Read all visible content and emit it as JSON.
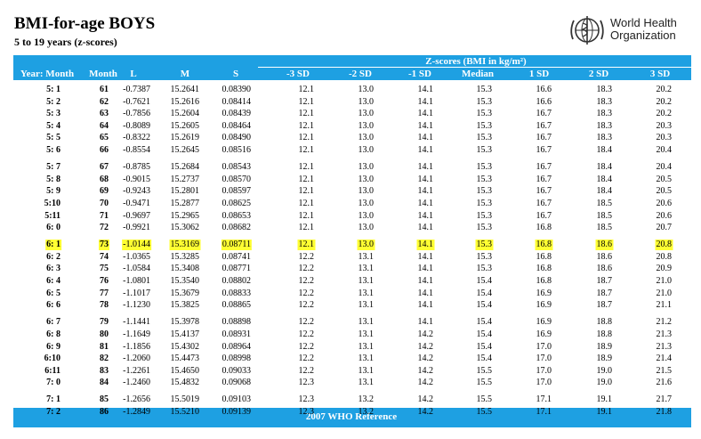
{
  "header": {
    "title": "BMI-for-age BOYS",
    "subtitle": "5 to 19 years (z-scores)",
    "organization": [
      "World Health",
      "Organization"
    ]
  },
  "table": {
    "group_header": "Z-scores (BMI in kg/m²)",
    "columns": [
      "Year: Month",
      "Month",
      "L",
      "M",
      "S",
      "-3 SD",
      "-2 SD",
      "-1 SD",
      "Median",
      "1 SD",
      "2 SD",
      "3 SD"
    ],
    "highlight": {
      "row": 12,
      "color": "#ffff33"
    },
    "rows": [
      [
        "5: 1",
        "61",
        "-0.7387",
        "15.2641",
        "0.08390",
        "12.1",
        "13.0",
        "14.1",
        "15.3",
        "16.6",
        "18.3",
        "20.2"
      ],
      [
        "5: 2",
        "62",
        "-0.7621",
        "15.2616",
        "0.08414",
        "12.1",
        "13.0",
        "14.1",
        "15.3",
        "16.6",
        "18.3",
        "20.2"
      ],
      [
        "5: 3",
        "63",
        "-0.7856",
        "15.2604",
        "0.08439",
        "12.1",
        "13.0",
        "14.1",
        "15.3",
        "16.7",
        "18.3",
        "20.2"
      ],
      [
        "5: 4",
        "64",
        "-0.8089",
        "15.2605",
        "0.08464",
        "12.1",
        "13.0",
        "14.1",
        "15.3",
        "16.7",
        "18.3",
        "20.3"
      ],
      [
        "5: 5",
        "65",
        "-0.8322",
        "15.2619",
        "0.08490",
        "12.1",
        "13.0",
        "14.1",
        "15.3",
        "16.7",
        "18.3",
        "20.3"
      ],
      [
        "5: 6",
        "66",
        "-0.8554",
        "15.2645",
        "0.08516",
        "12.1",
        "13.0",
        "14.1",
        "15.3",
        "16.7",
        "18.4",
        "20.4"
      ],
      [
        "5: 7",
        "67",
        "-0.8785",
        "15.2684",
        "0.08543",
        "12.1",
        "13.0",
        "14.1",
        "15.3",
        "16.7",
        "18.4",
        "20.4"
      ],
      [
        "5: 8",
        "68",
        "-0.9015",
        "15.2737",
        "0.08570",
        "12.1",
        "13.0",
        "14.1",
        "15.3",
        "16.7",
        "18.4",
        "20.5"
      ],
      [
        "5: 9",
        "69",
        "-0.9243",
        "15.2801",
        "0.08597",
        "12.1",
        "13.0",
        "14.1",
        "15.3",
        "16.7",
        "18.4",
        "20.5"
      ],
      [
        "5:10",
        "70",
        "-0.9471",
        "15.2877",
        "0.08625",
        "12.1",
        "13.0",
        "14.1",
        "15.3",
        "16.7",
        "18.5",
        "20.6"
      ],
      [
        "5:11",
        "71",
        "-0.9697",
        "15.2965",
        "0.08653",
        "12.1",
        "13.0",
        "14.1",
        "15.3",
        "16.7",
        "18.5",
        "20.6"
      ],
      [
        "6: 0",
        "72",
        "-0.9921",
        "15.3062",
        "0.08682",
        "12.1",
        "13.0",
        "14.1",
        "15.3",
        "16.8",
        "18.5",
        "20.7"
      ],
      [
        "6: 1",
        "73",
        "-1.0144",
        "15.3169",
        "0.08711",
        "12.1",
        "13.0",
        "14.1",
        "15.3",
        "16.8",
        "18.6",
        "20.8"
      ],
      [
        "6: 2",
        "74",
        "-1.0365",
        "15.3285",
        "0.08741",
        "12.2",
        "13.1",
        "14.1",
        "15.3",
        "16.8",
        "18.6",
        "20.8"
      ],
      [
        "6: 3",
        "75",
        "-1.0584",
        "15.3408",
        "0.08771",
        "12.2",
        "13.1",
        "14.1",
        "15.3",
        "16.8",
        "18.6",
        "20.9"
      ],
      [
        "6: 4",
        "76",
        "-1.0801",
        "15.3540",
        "0.08802",
        "12.2",
        "13.1",
        "14.1",
        "15.4",
        "16.8",
        "18.7",
        "21.0"
      ],
      [
        "6: 5",
        "77",
        "-1.1017",
        "15.3679",
        "0.08833",
        "12.2",
        "13.1",
        "14.1",
        "15.4",
        "16.9",
        "18.7",
        "21.0"
      ],
      [
        "6: 6",
        "78",
        "-1.1230",
        "15.3825",
        "0.08865",
        "12.2",
        "13.1",
        "14.1",
        "15.4",
        "16.9",
        "18.7",
        "21.1"
      ],
      [
        "6: 7",
        "79",
        "-1.1441",
        "15.3978",
        "0.08898",
        "12.2",
        "13.1",
        "14.1",
        "15.4",
        "16.9",
        "18.8",
        "21.2"
      ],
      [
        "6: 8",
        "80",
        "-1.1649",
        "15.4137",
        "0.08931",
        "12.2",
        "13.1",
        "14.2",
        "15.4",
        "16.9",
        "18.8",
        "21.3"
      ],
      [
        "6: 9",
        "81",
        "-1.1856",
        "15.4302",
        "0.08964",
        "12.2",
        "13.1",
        "14.2",
        "15.4",
        "17.0",
        "18.9",
        "21.3"
      ],
      [
        "6:10",
        "82",
        "-1.2060",
        "15.4473",
        "0.08998",
        "12.2",
        "13.1",
        "14.2",
        "15.4",
        "17.0",
        "18.9",
        "21.4"
      ],
      [
        "6:11",
        "83",
        "-1.2261",
        "15.4650",
        "0.09033",
        "12.2",
        "13.1",
        "14.2",
        "15.5",
        "17.0",
        "19.0",
        "21.5"
      ],
      [
        "7: 0",
        "84",
        "-1.2460",
        "15.4832",
        "0.09068",
        "12.3",
        "13.1",
        "14.2",
        "15.5",
        "17.0",
        "19.0",
        "21.6"
      ],
      [
        "7: 1",
        "85",
        "-1.2656",
        "15.5019",
        "0.09103",
        "12.3",
        "13.2",
        "14.2",
        "15.5",
        "17.1",
        "19.1",
        "21.7"
      ],
      [
        "7: 2",
        "86",
        "-1.2849",
        "15.5210",
        "0.09139",
        "12.3",
        "13.2",
        "14.2",
        "15.5",
        "17.1",
        "19.1",
        "21.8"
      ]
    ]
  },
  "footer": "2007 WHO Reference"
}
